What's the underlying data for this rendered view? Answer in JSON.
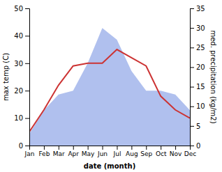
{
  "chart_data": {
    "type": "line",
    "xlabel": "date (month)",
    "ylabel": "max temp (C)",
    "y2label": "med. precipitation (kg/m2)",
    "categories": [
      "Jan",
      "Feb",
      "Mar",
      "Apr",
      "May",
      "Jun",
      "Jul",
      "Aug",
      "Sep",
      "Oct",
      "Nov",
      "Dec"
    ],
    "series": [
      {
        "type": "area",
        "axis": "y2",
        "color": "#b0c0ee",
        "values": [
          3,
          9,
          13,
          14,
          21,
          30,
          27,
          19,
          14,
          14,
          13,
          9
        ]
      },
      {
        "type": "line",
        "color": "#cc3333",
        "values": [
          5,
          13,
          22,
          29,
          30,
          30,
          35,
          32,
          29,
          18,
          13,
          10
        ]
      }
    ],
    "ylim": [
      0,
      50
    ],
    "yticks": [
      0,
      10,
      20,
      30,
      40,
      50
    ],
    "y2lim": [
      0,
      35
    ],
    "y2ticks": [
      0,
      5,
      10,
      15,
      20,
      25,
      30,
      35
    ],
    "grid": false
  }
}
